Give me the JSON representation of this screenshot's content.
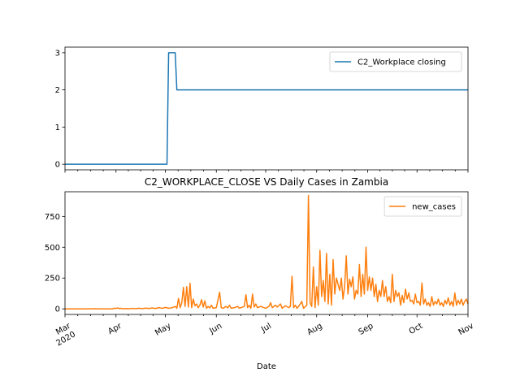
{
  "chart_data": [
    {
      "type": "line",
      "title": "",
      "xlabel": "",
      "ylabel": "",
      "xlim": [
        "2020-03-01",
        "2020-11-01"
      ],
      "ylim": [
        -0.15,
        3.15
      ],
      "yticks": [
        0,
        1,
        2,
        3
      ],
      "ytick_labels": [
        "0",
        "1",
        "2",
        "3"
      ],
      "grid": false,
      "legend": "top-right",
      "series": [
        {
          "name": "C2_Workplace closing",
          "color": "#1f77b4",
          "points": [
            [
              "2020-03-01",
              0
            ],
            [
              "2020-05-02",
              0
            ],
            [
              "2020-05-03",
              3
            ],
            [
              "2020-05-07",
              3
            ],
            [
              "2020-05-08",
              2
            ],
            [
              "2020-11-01",
              2
            ]
          ]
        }
      ]
    },
    {
      "type": "line",
      "title": "C2_WORKPLACE_CLOSE VS Daily Cases in Zambia",
      "xlabel": "Date",
      "ylabel": "",
      "xlim": [
        "2020-03-01",
        "2020-11-01"
      ],
      "ylim": [
        -45,
        950
      ],
      "yticks": [
        0,
        250,
        500,
        750
      ],
      "ytick_labels": [
        "0",
        "250",
        "500",
        "750"
      ],
      "xticks": [
        "2020-03-01",
        "2020-04-01",
        "2020-05-01",
        "2020-06-01",
        "2020-07-01",
        "2020-08-01",
        "2020-09-01",
        "2020-10-01",
        "2020-11-01"
      ],
      "xtick_labels": [
        "Mar\n2020",
        "Apr",
        "May",
        "Jun",
        "Jul",
        "Aug",
        "Sep",
        "Oct",
        "Nov"
      ],
      "grid": false,
      "legend": "top-right",
      "series": [
        {
          "name": "new_cases",
          "color": "#ff7f0e",
          "points": [
            [
              "2020-03-01",
              0
            ],
            [
              "2020-03-18",
              0
            ],
            [
              "2020-03-19",
              2
            ],
            [
              "2020-03-20",
              1
            ],
            [
              "2020-03-22",
              0
            ],
            [
              "2020-03-30",
              0
            ],
            [
              "2020-03-31",
              6
            ],
            [
              "2020-04-01",
              3
            ],
            [
              "2020-04-02",
              8
            ],
            [
              "2020-04-03",
              2
            ],
            [
              "2020-04-04",
              5
            ],
            [
              "2020-04-05",
              1
            ],
            [
              "2020-04-07",
              3
            ],
            [
              "2020-04-09",
              1
            ],
            [
              "2020-04-11",
              4
            ],
            [
              "2020-04-13",
              2
            ],
            [
              "2020-04-15",
              5
            ],
            [
              "2020-04-17",
              2
            ],
            [
              "2020-04-19",
              6
            ],
            [
              "2020-04-21",
              3
            ],
            [
              "2020-04-23",
              8
            ],
            [
              "2020-04-25",
              3
            ],
            [
              "2020-04-27",
              10
            ],
            [
              "2020-04-29",
              4
            ],
            [
              "2020-05-01",
              12
            ],
            [
              "2020-05-03",
              5
            ],
            [
              "2020-05-05",
              9
            ],
            [
              "2020-05-07",
              20
            ],
            [
              "2020-05-08",
              5
            ],
            [
              "2020-05-09",
              85
            ],
            [
              "2020-05-10",
              10
            ],
            [
              "2020-05-11",
              50
            ],
            [
              "2020-05-12",
              175
            ],
            [
              "2020-05-13",
              20
            ],
            [
              "2020-05-14",
              180
            ],
            [
              "2020-05-15",
              15
            ],
            [
              "2020-05-16",
              208
            ],
            [
              "2020-05-17",
              10
            ],
            [
              "2020-05-18",
              80
            ],
            [
              "2020-05-19",
              25
            ],
            [
              "2020-05-20",
              40
            ],
            [
              "2020-05-21",
              10
            ],
            [
              "2020-05-22",
              30
            ],
            [
              "2020-05-23",
              75
            ],
            [
              "2020-05-24",
              15
            ],
            [
              "2020-05-25",
              65
            ],
            [
              "2020-05-26",
              5
            ],
            [
              "2020-05-27",
              20
            ],
            [
              "2020-05-28",
              8
            ],
            [
              "2020-05-29",
              30
            ],
            [
              "2020-05-30",
              5
            ],
            [
              "2020-06-01",
              10
            ],
            [
              "2020-06-03",
              135
            ],
            [
              "2020-06-04",
              10
            ],
            [
              "2020-06-05",
              5
            ],
            [
              "2020-06-07",
              20
            ],
            [
              "2020-06-08",
              8
            ],
            [
              "2020-06-09",
              30
            ],
            [
              "2020-06-10",
              5
            ],
            [
              "2020-06-12",
              10
            ],
            [
              "2020-06-14",
              20
            ],
            [
              "2020-06-15",
              5
            ],
            [
              "2020-06-18",
              20
            ],
            [
              "2020-06-19",
              115
            ],
            [
              "2020-06-20",
              10
            ],
            [
              "2020-06-21",
              30
            ],
            [
              "2020-06-22",
              5
            ],
            [
              "2020-06-23",
              120
            ],
            [
              "2020-06-24",
              15
            ],
            [
              "2020-06-25",
              40
            ],
            [
              "2020-06-26",
              10
            ],
            [
              "2020-06-28",
              20
            ],
            [
              "2020-06-30",
              10
            ],
            [
              "2020-07-01",
              5
            ],
            [
              "2020-07-03",
              20
            ],
            [
              "2020-07-04",
              50
            ],
            [
              "2020-07-05",
              10
            ],
            [
              "2020-07-07",
              30
            ],
            [
              "2020-07-08",
              15
            ],
            [
              "2020-07-10",
              40
            ],
            [
              "2020-07-11",
              5
            ],
            [
              "2020-07-13",
              25
            ],
            [
              "2020-07-15",
              10
            ],
            [
              "2020-07-16",
              20
            ],
            [
              "2020-07-17",
              265
            ],
            [
              "2020-07-18",
              10
            ],
            [
              "2020-07-19",
              30
            ],
            [
              "2020-07-20",
              5
            ],
            [
              "2020-07-21",
              20
            ],
            [
              "2020-07-23",
              60
            ],
            [
              "2020-07-24",
              5
            ],
            [
              "2020-07-26",
              30
            ],
            [
              "2020-07-27",
              920
            ],
            [
              "2020-07-28",
              50
            ],
            [
              "2020-07-29",
              20
            ],
            [
              "2020-07-30",
              340
            ],
            [
              "2020-07-31",
              10
            ],
            [
              "2020-08-01",
              180
            ],
            [
              "2020-08-02",
              30
            ],
            [
              "2020-08-03",
              475
            ],
            [
              "2020-08-04",
              100
            ],
            [
              "2020-08-05",
              230
            ],
            [
              "2020-08-06",
              60
            ],
            [
              "2020-08-07",
              450
            ],
            [
              "2020-08-08",
              40
            ],
            [
              "2020-08-09",
              280
            ],
            [
              "2020-08-10",
              30
            ],
            [
              "2020-08-11",
              400
            ],
            [
              "2020-08-12",
              120
            ],
            [
              "2020-08-13",
              250
            ],
            [
              "2020-08-14",
              200
            ],
            [
              "2020-08-15",
              150
            ],
            [
              "2020-08-16",
              250
            ],
            [
              "2020-08-17",
              80
            ],
            [
              "2020-08-18",
              180
            ],
            [
              "2020-08-19",
              430
            ],
            [
              "2020-08-20",
              120
            ],
            [
              "2020-08-21",
              240
            ],
            [
              "2020-08-22",
              180
            ],
            [
              "2020-08-23",
              260
            ],
            [
              "2020-08-24",
              80
            ],
            [
              "2020-08-25",
              150
            ],
            [
              "2020-08-26",
              120
            ],
            [
              "2020-08-27",
              360
            ],
            [
              "2020-08-28",
              100
            ],
            [
              "2020-08-29",
              280
            ],
            [
              "2020-08-30",
              120
            ],
            [
              "2020-08-31",
              500
            ],
            [
              "2020-09-01",
              150
            ],
            [
              "2020-09-02",
              260
            ],
            [
              "2020-09-03",
              150
            ],
            [
              "2020-09-04",
              250
            ],
            [
              "2020-09-05",
              100
            ],
            [
              "2020-09-06",
              200
            ],
            [
              "2020-09-07",
              60
            ],
            [
              "2020-09-08",
              150
            ],
            [
              "2020-09-09",
              100
            ],
            [
              "2020-09-10",
              230
            ],
            [
              "2020-09-11",
              100
            ],
            [
              "2020-09-12",
              180
            ],
            [
              "2020-09-13",
              60
            ],
            [
              "2020-09-14",
              100
            ],
            [
              "2020-09-15",
              50
            ],
            [
              "2020-09-16",
              280
            ],
            [
              "2020-09-17",
              60
            ],
            [
              "2020-09-18",
              150
            ],
            [
              "2020-09-19",
              100
            ],
            [
              "2020-09-20",
              130
            ],
            [
              "2020-09-21",
              30
            ],
            [
              "2020-09-22",
              110
            ],
            [
              "2020-09-23",
              50
            ],
            [
              "2020-09-24",
              160
            ],
            [
              "2020-09-25",
              80
            ],
            [
              "2020-09-26",
              130
            ],
            [
              "2020-09-27",
              60
            ],
            [
              "2020-09-28",
              70
            ],
            [
              "2020-09-29",
              40
            ],
            [
              "2020-09-30",
              120
            ],
            [
              "2020-10-01",
              50
            ],
            [
              "2020-10-02",
              60
            ],
            [
              "2020-10-03",
              30
            ],
            [
              "2020-10-04",
              210
            ],
            [
              "2020-10-05",
              40
            ],
            [
              "2020-10-06",
              80
            ],
            [
              "2020-10-07",
              30
            ],
            [
              "2020-10-08",
              50
            ],
            [
              "2020-10-09",
              20
            ],
            [
              "2020-10-10",
              100
            ],
            [
              "2020-10-11",
              30
            ],
            [
              "2020-10-12",
              60
            ],
            [
              "2020-10-13",
              40
            ],
            [
              "2020-10-14",
              80
            ],
            [
              "2020-10-15",
              30
            ],
            [
              "2020-10-16",
              50
            ],
            [
              "2020-10-17",
              20
            ],
            [
              "2020-10-18",
              70
            ],
            [
              "2020-10-19",
              40
            ],
            [
              "2020-10-20",
              90
            ],
            [
              "2020-10-21",
              30
            ],
            [
              "2020-10-22",
              60
            ],
            [
              "2020-10-23",
              20
            ],
            [
              "2020-10-24",
              130
            ],
            [
              "2020-10-25",
              30
            ],
            [
              "2020-10-26",
              70
            ],
            [
              "2020-10-27",
              40
            ],
            [
              "2020-10-28",
              80
            ],
            [
              "2020-10-29",
              30
            ],
            [
              "2020-10-30",
              60
            ],
            [
              "2020-10-31",
              80
            ],
            [
              "2020-11-01",
              40
            ]
          ]
        }
      ]
    }
  ]
}
